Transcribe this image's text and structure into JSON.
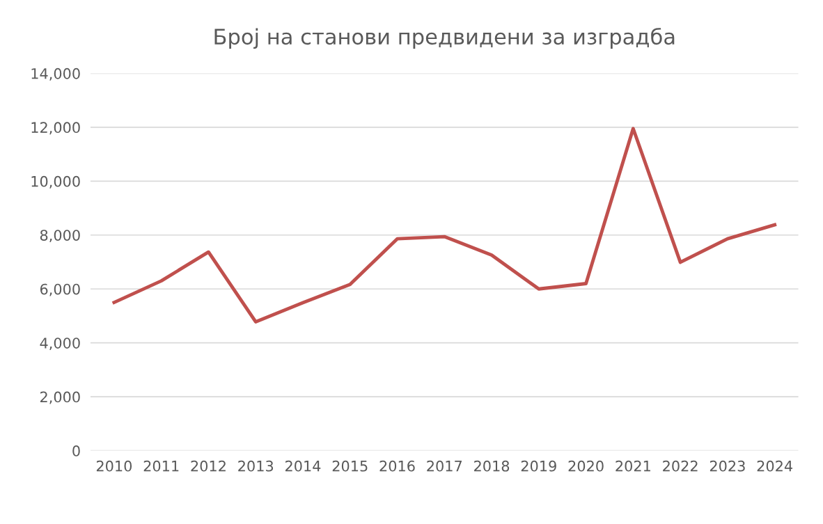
{
  "chart_data": {
    "type": "line",
    "title": "Број на станови предвидени за изградба",
    "categories": [
      "2010",
      "2011",
      "2012",
      "2013",
      "2014",
      "2015",
      "2016",
      "2017",
      "2018",
      "2019",
      "2020",
      "2021",
      "2022",
      "2023",
      "2024"
    ],
    "series": [
      {
        "color": "#c0504d",
        "values": [
          5500,
          6300,
          7370,
          4780,
          5490,
          6170,
          7860,
          7940,
          7260,
          6000,
          6200,
          11950,
          6990,
          7860,
          8380
        ]
      }
    ],
    "ylim": [
      0,
      14000
    ],
    "yticks": [
      0,
      {
        "value": 2000,
        "label": "2,000"
      },
      {
        "value": 4000,
        "label": "4,000"
      },
      {
        "value": 6000,
        "label": "6,000"
      },
      {
        "value": 8000,
        "label": "8,000"
      },
      {
        "value": 10000,
        "label": "10,000"
      },
      {
        "value": 12000,
        "label": "12,000"
      },
      {
        "value": 14000,
        "label": "14,000"
      }
    ],
    "grid": "y",
    "line_style": "solid",
    "marker": "none"
  }
}
